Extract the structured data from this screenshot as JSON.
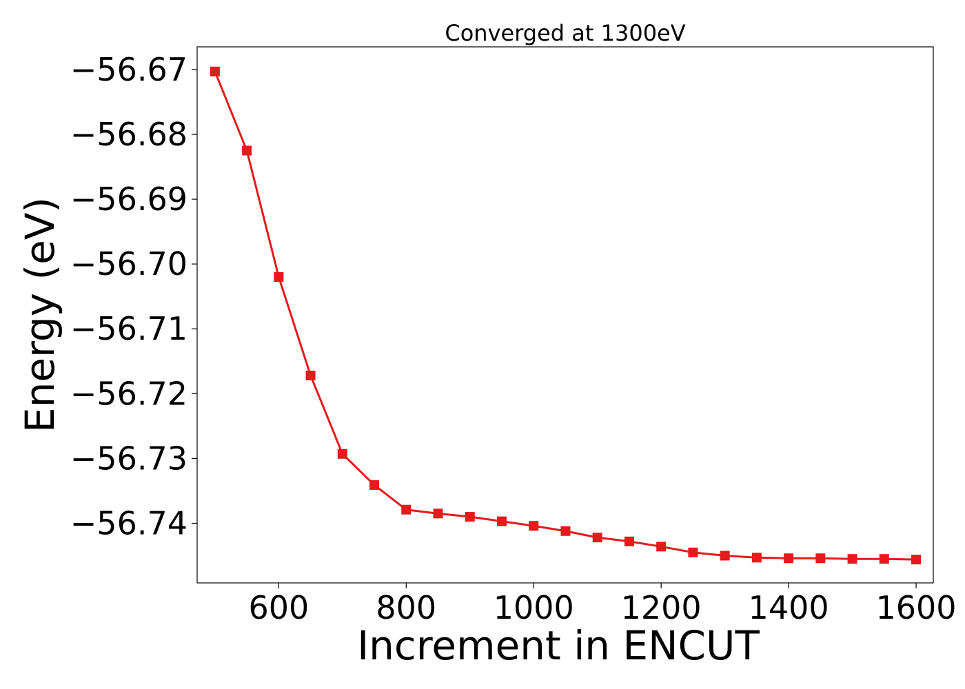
{
  "chart_data": {
    "type": "line",
    "title": "Converged at 1300eV",
    "xlabel": "Increment in ENCUT",
    "ylabel": "Energy (eV)",
    "xlim": [
      472,
      1627
    ],
    "ylim": [
      -56.7492,
      -56.6665
    ],
    "x_ticks": [
      600,
      800,
      1000,
      1200,
      1400,
      1600
    ],
    "x_tick_labels": [
      "600",
      "800",
      "1000",
      "1200",
      "1400",
      "1600"
    ],
    "y_ticks": [
      -56.67,
      -56.68,
      -56.69,
      -56.7,
      -56.71,
      -56.72,
      -56.73,
      -56.74
    ],
    "y_tick_labels": [
      "−56.67",
      "−56.68",
      "−56.69",
      "−56.70",
      "−56.71",
      "−56.72",
      "−56.73",
      "−56.74"
    ],
    "grid": false,
    "series": [
      {
        "color": "#e41a1c",
        "marker": "square",
        "x": [
          500,
          550,
          600,
          650,
          700,
          750,
          800,
          850,
          900,
          950,
          1000,
          1050,
          1100,
          1150,
          1200,
          1250,
          1300,
          1350,
          1400,
          1450,
          1500,
          1550,
          1600
        ],
        "y": [
          -56.6703,
          -56.6825,
          -56.702,
          -56.7172,
          -56.7293,
          -56.7341,
          -56.7379,
          -56.7385,
          -56.739,
          -56.7397,
          -56.7404,
          -56.7412,
          -56.7422,
          -56.7428,
          -56.7436,
          -56.7445,
          -56.745,
          -56.7453,
          -56.7454,
          -56.7454,
          -56.7455,
          -56.7455,
          -56.7456
        ]
      }
    ]
  }
}
